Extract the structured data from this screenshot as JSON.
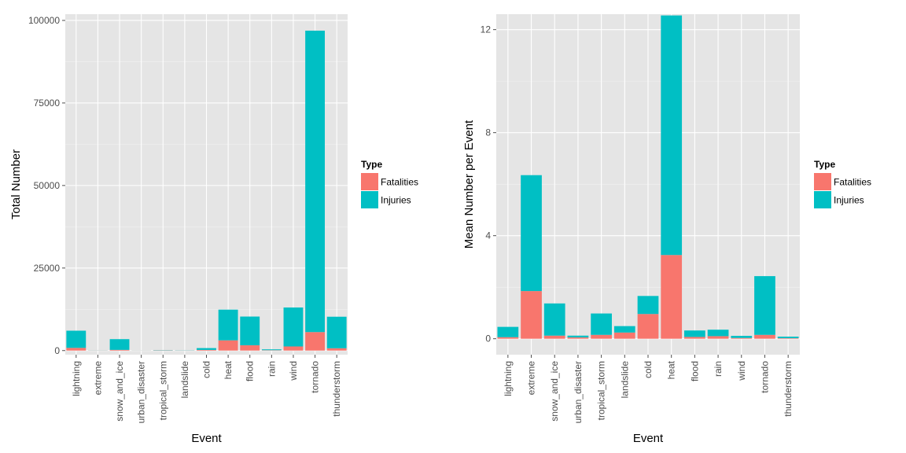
{
  "chart_data": [
    {
      "type": "bar",
      "stacked": true,
      "categories": [
        "lightning",
        "extreme",
        "snow_and_ice",
        "urban_disaster",
        "tropical_storm",
        "landslide",
        "cold",
        "heat",
        "flood",
        "rain",
        "wind",
        "tornado",
        "thunderstorm"
      ],
      "series": [
        {
          "name": "Fatalities",
          "color": "#F8766D",
          "values": [
            820,
            40,
            210,
            30,
            70,
            40,
            200,
            3100,
            1600,
            110,
            1250,
            5600,
            700
          ]
        },
        {
          "name": "Injuries",
          "color": "#00BFC4",
          "values": [
            5200,
            30,
            3250,
            20,
            80,
            50,
            550,
            9300,
            8700,
            260,
            11800,
            91300,
            9550
          ]
        }
      ],
      "xlabel": "Event",
      "ylabel": "Total Number",
      "ylim": [
        0,
        100000
      ],
      "yticks": [
        0,
        25000,
        50000,
        75000,
        100000
      ],
      "grid": true,
      "legend": {
        "title": "Type",
        "entries": [
          "Fatalities",
          "Injuries"
        ],
        "placement": "right"
      }
    },
    {
      "type": "bar",
      "stacked": true,
      "categories": [
        "lightning",
        "extreme",
        "snow_and_ice",
        "urban_disaster",
        "tropical_storm",
        "landslide",
        "cold",
        "heat",
        "flood",
        "rain",
        "wind",
        "tornado",
        "thunderstorm"
      ],
      "series": [
        {
          "name": "Fatalities",
          "color": "#F8766D",
          "values": [
            0.06,
            1.85,
            0.12,
            0.05,
            0.15,
            0.24,
            0.96,
            3.25,
            0.07,
            0.1,
            0.03,
            0.15,
            0.02
          ]
        },
        {
          "name": "Injuries",
          "color": "#00BFC4",
          "values": [
            0.4,
            4.5,
            1.25,
            0.07,
            0.83,
            0.25,
            0.7,
            9.3,
            0.25,
            0.25,
            0.08,
            2.28,
            0.06
          ]
        }
      ],
      "xlabel": "Event",
      "ylabel": "Mean Number per Event",
      "ylim": [
        0,
        12.6
      ],
      "yticks": [
        0,
        4,
        8,
        12
      ],
      "grid": true,
      "legend": {
        "title": "Type",
        "entries": [
          "Fatalities",
          "Injuries"
        ],
        "placement": "right"
      }
    }
  ]
}
